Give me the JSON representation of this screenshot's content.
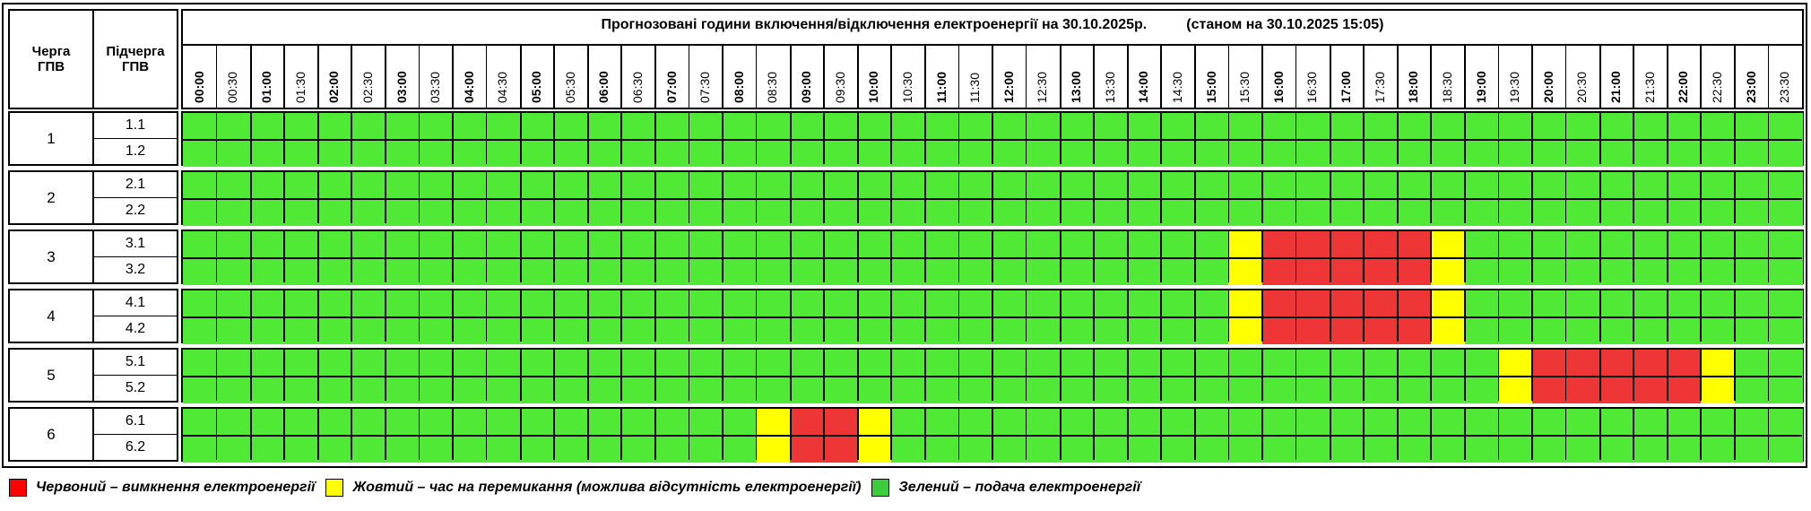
{
  "title_main": "Прогнозовані години включення/відключення електроенергії на 30.10.2025р.",
  "title_status": "(станом на 30.10.2025 15:05)",
  "header_queue": "Черга ГПВ",
  "header_subqueue": "Підчерга ГПВ",
  "colors": {
    "red": "#ee3636",
    "yellow": "#ffff00",
    "green": "#4fe936",
    "legend_red": "#ff0000",
    "legend_green": "#3ccd3c"
  },
  "times": [
    "00:00",
    "00:30",
    "01:00",
    "01:30",
    "02:00",
    "02:30",
    "03:00",
    "03:30",
    "04:00",
    "04:30",
    "05:00",
    "05:30",
    "06:00",
    "06:30",
    "07:00",
    "07:30",
    "08:00",
    "08:30",
    "09:00",
    "09:30",
    "10:00",
    "10:30",
    "11:00",
    "11:30",
    "12:00",
    "12:30",
    "13:00",
    "13:30",
    "14:00",
    "14:30",
    "15:00",
    "15:30",
    "16:00",
    "16:30",
    "17:00",
    "17:30",
    "18:00",
    "18:30",
    "19:00",
    "19:30",
    "20:00",
    "20:30",
    "21:00",
    "21:30",
    "22:00",
    "22:30",
    "23:00",
    "23:30"
  ],
  "groups": [
    {
      "queue": "1",
      "rows": [
        {
          "sub": "1.1",
          "cells": "gggggggggggggggggggggggggggggggggggggggggggggggg"
        },
        {
          "sub": "1.2",
          "cells": "gggggggggggggggggggggggggggggggggggggggggggggggg"
        }
      ]
    },
    {
      "queue": "2",
      "rows": [
        {
          "sub": "2.1",
          "cells": "gggggggggggggggggggggggggggggggggggggggggggggggg"
        },
        {
          "sub": "2.2",
          "cells": "gggggggggggggggggggggggggggggggggggggggggggggggg"
        }
      ]
    },
    {
      "queue": "3",
      "rows": [
        {
          "sub": "3.1",
          "cells": "gggggggggggggggggggggggggggggggyrrrrrygggggggggg"
        },
        {
          "sub": "3.2",
          "cells": "gggggggggggggggggggggggggggggggyrrrrrygggggggggg"
        }
      ]
    },
    {
      "queue": "4",
      "rows": [
        {
          "sub": "4.1",
          "cells": "gggggggggggggggggggggggggggggggyrrrrrygggggggggg"
        },
        {
          "sub": "4.2",
          "cells": "gggggggggggggggggggggggggggggggyrrrrrygggggggggg"
        }
      ]
    },
    {
      "queue": "5",
      "rows": [
        {
          "sub": "5.1",
          "cells": "gggggggggggggggggggggggggggggggggggggggyrrrrrygg"
        },
        {
          "sub": "5.2",
          "cells": "gggggggggggggggggggggggggggggggggggggggyrrrrrygg"
        }
      ]
    },
    {
      "queue": "6",
      "rows": [
        {
          "sub": "6.1",
          "cells": "gggggggggggggggggyrrygggggggggggggggggggggggggggg"
        },
        {
          "sub": "6.2",
          "cells": "gggggggggggggggggyrrygggggggggggggggggggggggggggg"
        }
      ]
    }
  ],
  "legend": [
    {
      "color": "red",
      "label": "Червоний – вимкнення електроенергії"
    },
    {
      "color": "yellow",
      "label": "Жовтий – час на перемикання (можлива відсутність електроенергії)"
    },
    {
      "color": "green",
      "label": "Зелений – подача електроенергії"
    }
  ]
}
